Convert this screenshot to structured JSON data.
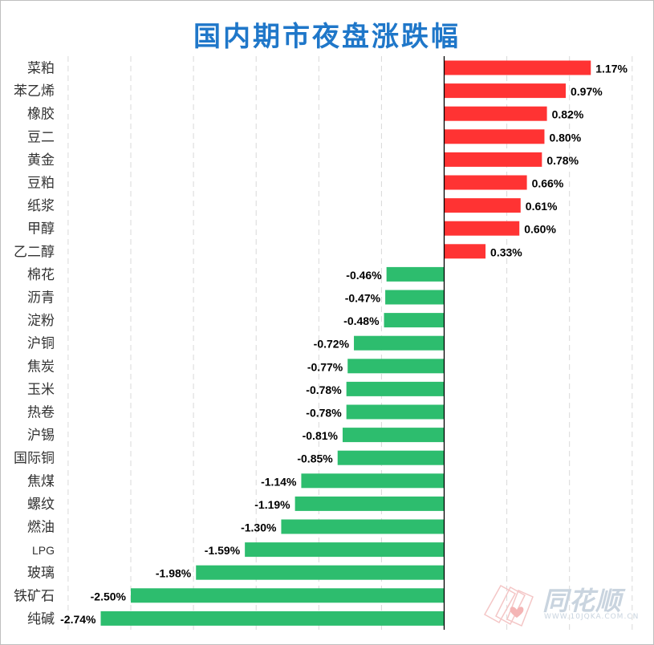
{
  "chart_data": {
    "type": "bar",
    "orientation": "horizontal",
    "title": "国内期市夜盘涨跌幅",
    "categories": [
      "菜粕",
      "苯乙烯",
      "橡胶",
      "豆二",
      "黄金",
      "豆粕",
      "纸浆",
      "甲醇",
      "乙二醇",
      "棉花",
      "沥青",
      "淀粉",
      "沪铜",
      "焦炭",
      "玉米",
      "热卷",
      "沪锡",
      "国际铜",
      "焦煤",
      "螺纹",
      "燃油",
      "LPG",
      "玻璃",
      "铁矿石",
      "纯碱"
    ],
    "values": [
      1.17,
      0.97,
      0.82,
      0.8,
      0.78,
      0.66,
      0.61,
      0.6,
      0.33,
      -0.46,
      -0.47,
      -0.48,
      -0.72,
      -0.77,
      -0.78,
      -0.78,
      -0.81,
      -0.85,
      -1.14,
      -1.19,
      -1.3,
      -1.59,
      -1.98,
      -2.5,
      -2.74
    ],
    "labels": [
      "1.17%",
      "0.97%",
      "0.82%",
      "0.80%",
      "0.78%",
      "0.66%",
      "0.61%",
      "0.60%",
      "0.33%",
      "-0.46%",
      "-0.47%",
      "-0.48%",
      "-0.72%",
      "-0.77%",
      "-0.78%",
      "-0.78%",
      "-0.81%",
      "-0.85%",
      "-1.14%",
      "-1.19%",
      "-1.30%",
      "-1.59%",
      "-1.98%",
      "-2.50%",
      "-2.74%"
    ],
    "unit": "%",
    "xlim": [
      -3.0,
      1.5
    ],
    "grid": "vertical dashed",
    "colors": {
      "positive": "#ff3333",
      "negative": "#2dbd6e",
      "grid": "#d9d9d9",
      "axis": "#000000",
      "title": "#1f77c9"
    }
  },
  "watermark": {
    "brand": "同花顺",
    "url": "WWW.10JQKA.COM.CN"
  }
}
